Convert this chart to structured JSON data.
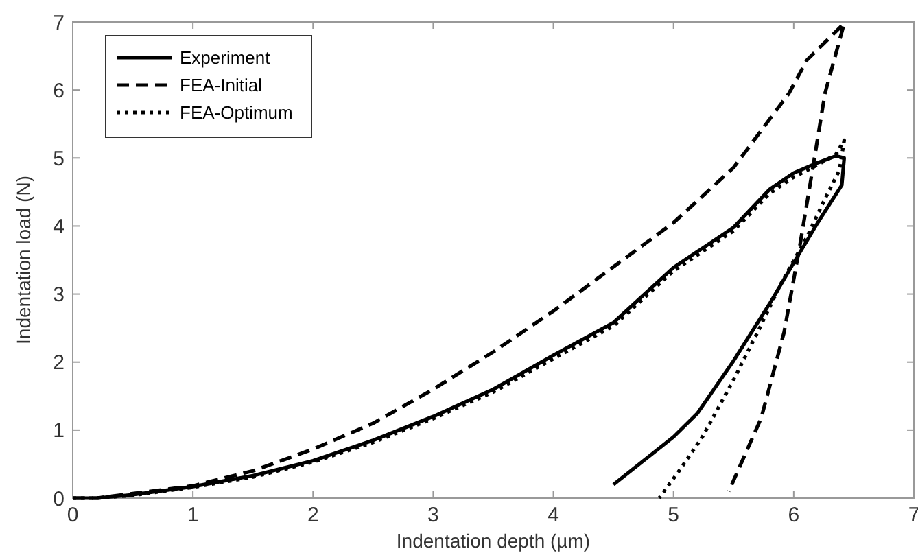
{
  "chart_data": {
    "type": "line",
    "xlabel": "Indentation depth (µm)",
    "ylabel": "Indentation load (N)",
    "xlim": [
      0,
      7
    ],
    "ylim": [
      0,
      7
    ],
    "xticks": [
      0,
      1,
      2,
      3,
      4,
      5,
      6,
      7
    ],
    "yticks": [
      0,
      1,
      2,
      3,
      4,
      5,
      6,
      7
    ],
    "legend": "top left",
    "series": [
      {
        "name": "Experiment",
        "color": "#000000",
        "line_style": "solid",
        "x": [
          0,
          0.2,
          0.5,
          1,
          1.5,
          2,
          2.5,
          3,
          3.5,
          4,
          4.5,
          5,
          5.5,
          5.8,
          6,
          6.2,
          6.35,
          6.42,
          6.4,
          6.2,
          6,
          5.8,
          5.5,
          5.2,
          5,
          4.75,
          4.5
        ],
        "values": [
          0,
          0,
          0.05,
          0.17,
          0.33,
          0.55,
          0.85,
          1.2,
          1.6,
          2.1,
          2.58,
          3.39,
          3.98,
          4.54,
          4.78,
          4.93,
          5.03,
          5.0,
          4.6,
          4.05,
          3.46,
          2.86,
          2.02,
          1.25,
          0.9,
          0.55,
          0.2
        ]
      },
      {
        "name": "FEA-Initial",
        "color": "#000000",
        "line_style": "dashed",
        "x": [
          0,
          0.2,
          1,
          1.5,
          2,
          2.5,
          3,
          3.5,
          4,
          4.5,
          5,
          5.5,
          5.96,
          6.11,
          6.42,
          6.26,
          6.17,
          6.05,
          5.92,
          5.73,
          5.46
        ],
        "values": [
          0,
          0,
          0.18,
          0.4,
          0.72,
          1.1,
          1.6,
          2.15,
          2.75,
          3.4,
          4.05,
          4.86,
          5.95,
          6.44,
          6.98,
          5.95,
          4.97,
          3.7,
          2.44,
          1.18,
          0.1
        ]
      },
      {
        "name": "FEA-Optimum",
        "color": "#000000",
        "line_style": "dotted",
        "x": [
          0,
          0.2,
          0.5,
          1,
          1.5,
          2,
          2.5,
          3,
          3.5,
          4,
          4.5,
          5,
          5.5,
          5.8,
          6,
          6.2,
          6.35,
          6.42,
          6.38,
          6.26,
          6.11,
          5.89,
          5.7,
          5.5,
          5.24,
          5.05,
          4.88
        ],
        "values": [
          0,
          0,
          0.04,
          0.16,
          0.31,
          0.53,
          0.82,
          1.17,
          1.56,
          2.05,
          2.53,
          3.34,
          3.93,
          4.48,
          4.72,
          4.9,
          5.05,
          5.26,
          4.82,
          4.4,
          3.84,
          3.14,
          2.44,
          1.74,
          0.9,
          0.41,
          0
        ]
      }
    ]
  }
}
